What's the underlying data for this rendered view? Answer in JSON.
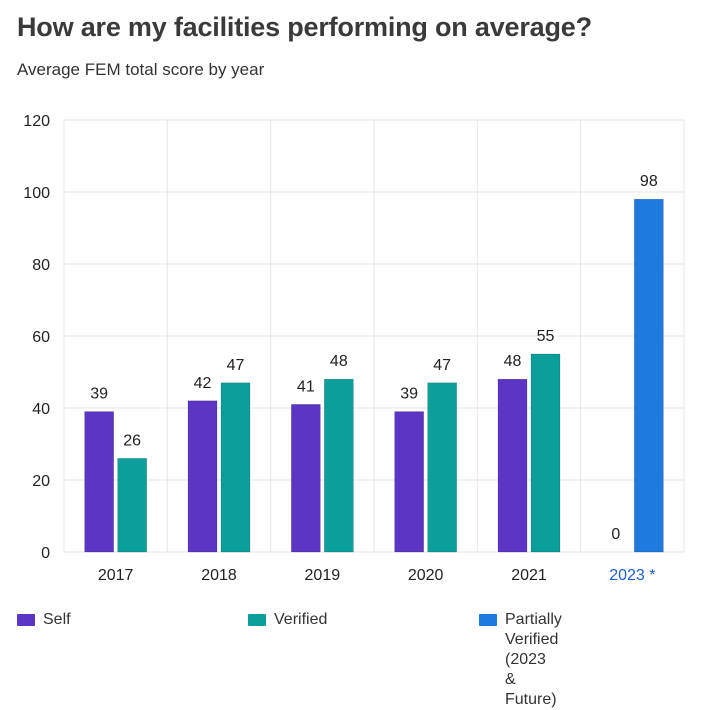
{
  "header": {
    "title": "How are my facilities performing on average?",
    "subtitle": "Average FEM total score by year"
  },
  "colors": {
    "self": "#5b35c4",
    "verified": "#0c9e9a",
    "partial": "#1f7ae0",
    "highlight_label": "#1f5fd0",
    "grid": "#e6e6e6",
    "axis_text": "#222222"
  },
  "chart_data": {
    "type": "bar",
    "title": "How are my facilities performing on average?",
    "subtitle": "Average FEM total score by year",
    "categories": [
      "2017",
      "2018",
      "2019",
      "2020",
      "2021",
      "2023 *"
    ],
    "highlighted_category": "2023 *",
    "series": [
      {
        "name": "Self",
        "values": [
          39,
          42,
          41,
          39,
          48,
          0
        ]
      },
      {
        "name": "Verified",
        "values": [
          26,
          47,
          48,
          47,
          55,
          null
        ]
      },
      {
        "name": "Partially Verified (2023 & Future)",
        "values": [
          null,
          null,
          null,
          null,
          null,
          98
        ]
      }
    ],
    "y_ticks": [
      0,
      20,
      40,
      60,
      80,
      100,
      120
    ],
    "ylim": [
      0,
      120
    ],
    "xlabel": "",
    "ylabel": "",
    "grid": true,
    "legend_position": "bottom"
  },
  "legend": {
    "items": [
      {
        "label": "Self"
      },
      {
        "label": "Verified"
      },
      {
        "label": "Partially Verified (2023\n& Future)"
      }
    ]
  }
}
